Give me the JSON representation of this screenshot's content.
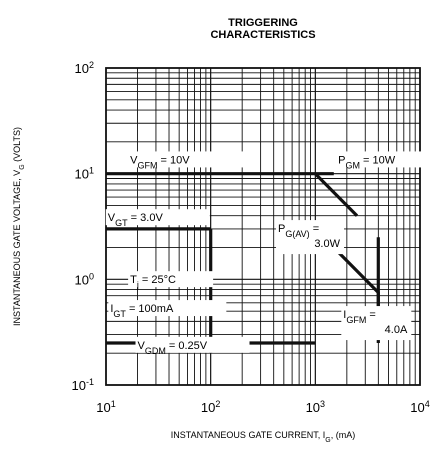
{
  "chart_data": {
    "type": "line",
    "title_line1": "TRIGGERING",
    "title_line2": "CHARACTERISTICS",
    "xlabel": {
      "main": "INSTANTANEOUS GATE CURRENT, I",
      "sub": "G",
      "unit": ", (mA)"
    },
    "ylabel": {
      "main": "INSTANTANEOUS GATE VOLTAGE, V",
      "sub": "G",
      "unit": " (VOLTS)"
    },
    "x_scale": "log",
    "y_scale": "log",
    "xlim": [
      10,
      10000
    ],
    "ylim": [
      0.1,
      100
    ],
    "grid": true,
    "x_ticks": [
      {
        "base": "10",
        "exp": "1"
      },
      {
        "base": "10",
        "exp": "2"
      },
      {
        "base": "10",
        "exp": "3"
      },
      {
        "base": "10",
        "exp": "4"
      }
    ],
    "y_ticks": [
      {
        "base": "10",
        "exp": "-1"
      },
      {
        "base": "10",
        "exp": "0"
      },
      {
        "base": "10",
        "exp": "1"
      },
      {
        "base": "10",
        "exp": "2"
      }
    ],
    "curves": [
      {
        "id": "vgfm",
        "points": [
          [
            10,
            10
          ],
          [
            1500,
            10
          ]
        ]
      },
      {
        "id": "pgm",
        "points": [
          [
            1000,
            10
          ],
          [
            2500,
            4.0
          ]
        ]
      },
      {
        "id": "igfm",
        "points": [
          [
            4000,
            0.5
          ],
          [
            4000,
            2.5
          ]
        ]
      },
      {
        "id": "pgav",
        "points": [
          [
            1000,
            3.0
          ],
          [
            4000,
            0.75
          ],
          [
            4000,
            0.25
          ]
        ]
      },
      {
        "id": "vgt",
        "points": [
          [
            10,
            3.0
          ],
          [
            100,
            3.0
          ]
        ]
      },
      {
        "id": "igt",
        "points": [
          [
            100,
            0.2
          ],
          [
            100,
            3.0
          ]
        ]
      },
      {
        "id": "vgdm",
        "points": [
          [
            10,
            0.25
          ],
          [
            1000,
            0.25
          ]
        ]
      }
    ],
    "annotations": [
      {
        "name": "vgfm",
        "pre": "V",
        "sub": "GFM",
        "post": " = 10V"
      },
      {
        "name": "pgm",
        "pre": "P",
        "sub": "GM",
        "post": " = 10W"
      },
      {
        "name": "vgt",
        "pre": "V",
        "sub": "GT",
        "post": " = 3.0V"
      },
      {
        "name": "pgav",
        "pre": "P",
        "sub": "G(AV)",
        "post": " =",
        "line2": "3.0W"
      },
      {
        "name": "tj",
        "pre": "T",
        "sub": "j",
        "post": " = 25°C"
      },
      {
        "name": "igt",
        "pre": "I",
        "sub": "GT",
        "post": " = 100mA"
      },
      {
        "name": "igfm",
        "pre": "I",
        "sub": "GFM",
        "post": " =",
        "line2": "4.0A"
      },
      {
        "name": "vgdm",
        "pre": "V",
        "sub": "GDM",
        "post": " = 0.25V"
      }
    ]
  }
}
